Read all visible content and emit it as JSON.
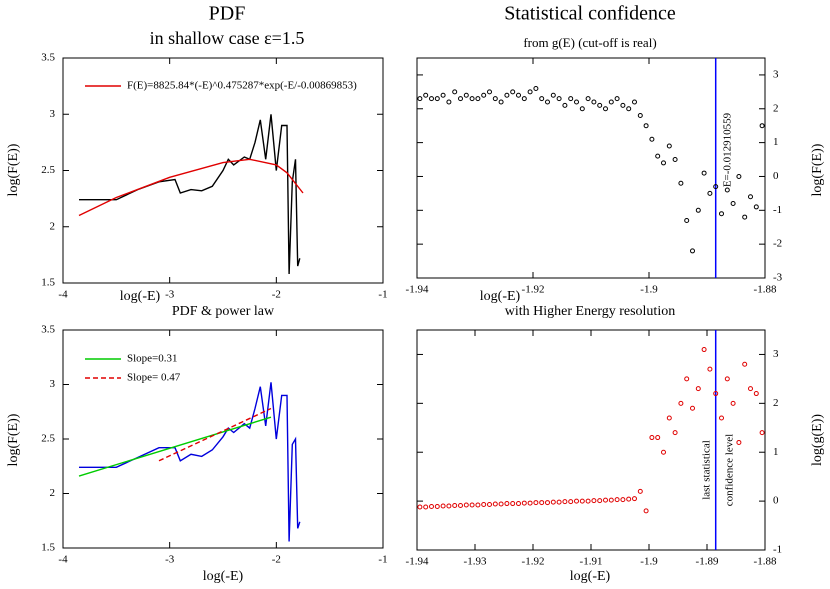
{
  "chart_data": [
    {
      "type": "line",
      "title": "PDF",
      "subtitle": "in shallow case ε=1.5",
      "xlabel": "log(-E)",
      "ylabel": "log(F(E))",
      "xlim": [
        -4,
        -1
      ],
      "xticks": [
        -4,
        -3,
        -2,
        -1
      ],
      "ylim": [
        1.5,
        3.5
      ],
      "yticks": [
        1.5,
        2,
        2.5,
        3,
        3.5
      ],
      "ytick_side": "left",
      "series": [
        {
          "color": "#000000",
          "x": [
            -3.85,
            -3.5,
            -3.3,
            -3.1,
            -2.95,
            -2.9,
            -2.8,
            -2.7,
            -2.6,
            -2.5,
            -2.45,
            -2.4,
            -2.3,
            -2.25,
            -2.2,
            -2.15,
            -2.1,
            -2.05,
            -2.0,
            -1.95,
            -1.9,
            -1.88,
            -1.85,
            -1.82,
            -1.8,
            -1.78
          ],
          "values": [
            2.24,
            2.24,
            2.33,
            2.4,
            2.42,
            2.3,
            2.33,
            2.32,
            2.36,
            2.5,
            2.6,
            2.55,
            2.62,
            2.6,
            2.75,
            2.95,
            2.6,
            3.0,
            2.5,
            2.9,
            2.9,
            1.58,
            2.4,
            2.6,
            1.65,
            1.72
          ]
        },
        {
          "name": "F(E)=8825.84*(-E)^0.475287*exp(-E/-0.00869853)",
          "color": "#e00000",
          "x": [
            -3.85,
            -3.5,
            -3.0,
            -2.5,
            -2.25,
            -2.0,
            -1.9,
            -1.75
          ],
          "values": [
            2.1,
            2.26,
            2.44,
            2.57,
            2.6,
            2.55,
            2.48,
            2.3
          ]
        }
      ]
    },
    {
      "type": "scatter",
      "title": "Statistical confidence",
      "subtitle": "from g(E) (cut-off is real)",
      "xlabel": "log(-E)",
      "ylabel": "log(F(E))",
      "xlim": [
        -1.94,
        -1.88
      ],
      "xticks": [
        -1.94,
        -1.92,
        -1.9,
        -1.88
      ],
      "ylim": [
        -3,
        3.5
      ],
      "yticks": [
        -3,
        -2,
        -1,
        0,
        1,
        2,
        3
      ],
      "ytick_side": "right",
      "vline": -1.8885,
      "vline_color": "#0000ff",
      "annotations": [
        "E=-0.012910559"
      ],
      "series": [
        {
          "color": "#000000",
          "x": [
            -1.9395,
            -1.9385,
            -1.9375,
            -1.9365,
            -1.9355,
            -1.9345,
            -1.9335,
            -1.9325,
            -1.9315,
            -1.9305,
            -1.9295,
            -1.9285,
            -1.9275,
            -1.9265,
            -1.9255,
            -1.9245,
            -1.9235,
            -1.9225,
            -1.9215,
            -1.9205,
            -1.9195,
            -1.9185,
            -1.9175,
            -1.9165,
            -1.9155,
            -1.9145,
            -1.9135,
            -1.9125,
            -1.9115,
            -1.9105,
            -1.9095,
            -1.9085,
            -1.9075,
            -1.9065,
            -1.9055,
            -1.9045,
            -1.9035,
            -1.9025,
            -1.9015,
            -1.9005,
            -1.8995,
            -1.8985,
            -1.8975,
            -1.8965,
            -1.8955,
            -1.8945,
            -1.8935,
            -1.8925,
            -1.8915,
            -1.8905,
            -1.8895,
            -1.8885,
            -1.8875,
            -1.8865,
            -1.8855,
            -1.8845,
            -1.8835,
            -1.8825,
            -1.8815,
            -1.8805
          ],
          "values": [
            2.3,
            2.4,
            2.3,
            2.3,
            2.4,
            2.2,
            2.5,
            2.3,
            2.4,
            2.3,
            2.3,
            2.4,
            2.5,
            2.3,
            2.2,
            2.4,
            2.5,
            2.4,
            2.3,
            2.5,
            2.6,
            2.3,
            2.2,
            2.4,
            2.3,
            2.1,
            2.3,
            2.2,
            2.0,
            2.3,
            2.2,
            2.1,
            2.0,
            2.2,
            2.3,
            2.1,
            2.0,
            2.2,
            1.8,
            1.5,
            1.1,
            0.6,
            0.4,
            0.9,
            0.5,
            -0.2,
            -1.3,
            -2.2,
            -1.0,
            0.1,
            -0.5,
            -0.3,
            -1.1,
            -0.4,
            -0.8,
            0.0,
            -1.2,
            -0.6,
            -0.9,
            1.5
          ]
        }
      ]
    },
    {
      "type": "line",
      "title": "PDF & power law",
      "xlabel": "log(-E)",
      "ylabel": "log(F(E))",
      "xlim": [
        -4,
        -1
      ],
      "xticks": [
        -4,
        -3,
        -2,
        -1
      ],
      "ylim": [
        1.5,
        3.5
      ],
      "yticks": [
        1.5,
        2,
        2.5,
        3,
        3.5
      ],
      "ytick_side": "left",
      "series": [
        {
          "color": "#0000dd",
          "x": [
            -3.85,
            -3.5,
            -3.3,
            -3.1,
            -2.95,
            -2.9,
            -2.8,
            -2.7,
            -2.6,
            -2.5,
            -2.45,
            -2.4,
            -2.3,
            -2.25,
            -2.2,
            -2.15,
            -2.1,
            -2.05,
            -2.0,
            -1.95,
            -1.9,
            -1.88,
            -1.85,
            -1.82,
            -1.8,
            -1.78
          ],
          "values": [
            2.24,
            2.24,
            2.33,
            2.42,
            2.42,
            2.3,
            2.36,
            2.34,
            2.4,
            2.52,
            2.6,
            2.56,
            2.64,
            2.6,
            2.78,
            2.98,
            2.62,
            3.02,
            2.5,
            2.9,
            2.9,
            1.56,
            2.45,
            2.5,
            1.68,
            1.74
          ]
        },
        {
          "name": "Slope=0.31",
          "color": "#00cc00",
          "x": [
            -3.85,
            -2.05
          ],
          "values": [
            2.16,
            2.7
          ]
        },
        {
          "name": "Slope= 0.47",
          "color": "#e00000",
          "dash": true,
          "x": [
            -3.1,
            -2.05
          ],
          "values": [
            2.3,
            2.78
          ]
        }
      ]
    },
    {
      "type": "scatter",
      "title": "with Higher Energy resolution",
      "xlabel": "log(-E)",
      "ylabel": "log(g(E))",
      "xlim": [
        -1.94,
        -1.88
      ],
      "xticks": [
        -1.94,
        -1.93,
        -1.92,
        -1.91,
        -1.9,
        -1.89,
        -1.88
      ],
      "ylim": [
        -1,
        3.5
      ],
      "yticks": [
        -1,
        0,
        1,
        2,
        3
      ],
      "ytick_side": "right",
      "vline": -1.8885,
      "vline_color": "#0000ff",
      "annotations": [
        "last statistical",
        "confidence level"
      ],
      "series": [
        {
          "color": "#e00000",
          "x": [
            -1.9395,
            -1.9385,
            -1.9375,
            -1.9365,
            -1.9355,
            -1.9345,
            -1.9335,
            -1.9325,
            -1.9315,
            -1.9305,
            -1.9295,
            -1.9285,
            -1.9275,
            -1.9265,
            -1.9255,
            -1.9245,
            -1.9235,
            -1.9225,
            -1.9215,
            -1.9205,
            -1.9195,
            -1.9185,
            -1.9175,
            -1.9165,
            -1.9155,
            -1.9145,
            -1.9135,
            -1.9125,
            -1.9115,
            -1.9105,
            -1.9095,
            -1.9085,
            -1.9075,
            -1.9065,
            -1.9055,
            -1.9045,
            -1.9035,
            -1.9025,
            -1.9015,
            -1.9005,
            -1.8995,
            -1.8985,
            -1.8975,
            -1.8965,
            -1.8955,
            -1.8945,
            -1.8935,
            -1.8925,
            -1.8915,
            -1.8905,
            -1.8895,
            -1.8885,
            -1.8875,
            -1.8865,
            -1.8855,
            -1.8845,
            -1.8835,
            -1.8825,
            -1.8815,
            -1.8805
          ],
          "values": [
            -0.12,
            -0.12,
            -0.11,
            -0.11,
            -0.1,
            -0.1,
            -0.09,
            -0.09,
            -0.08,
            -0.08,
            -0.08,
            -0.07,
            -0.07,
            -0.06,
            -0.06,
            -0.05,
            -0.05,
            -0.05,
            -0.04,
            -0.04,
            -0.03,
            -0.03,
            -0.03,
            -0.02,
            -0.02,
            -0.01,
            -0.01,
            0,
            0,
            0,
            0.01,
            0.01,
            0.02,
            0.02,
            0.03,
            0.03,
            0.04,
            0.05,
            0.2,
            -0.2,
            1.3,
            1.3,
            1.0,
            1.7,
            1.4,
            2.0,
            2.5,
            1.9,
            2.3,
            3.1,
            2.7,
            2.2,
            1.7,
            2.5,
            2.0,
            1.2,
            2.8,
            2.3,
            2.2,
            1.4
          ]
        }
      ]
    }
  ]
}
